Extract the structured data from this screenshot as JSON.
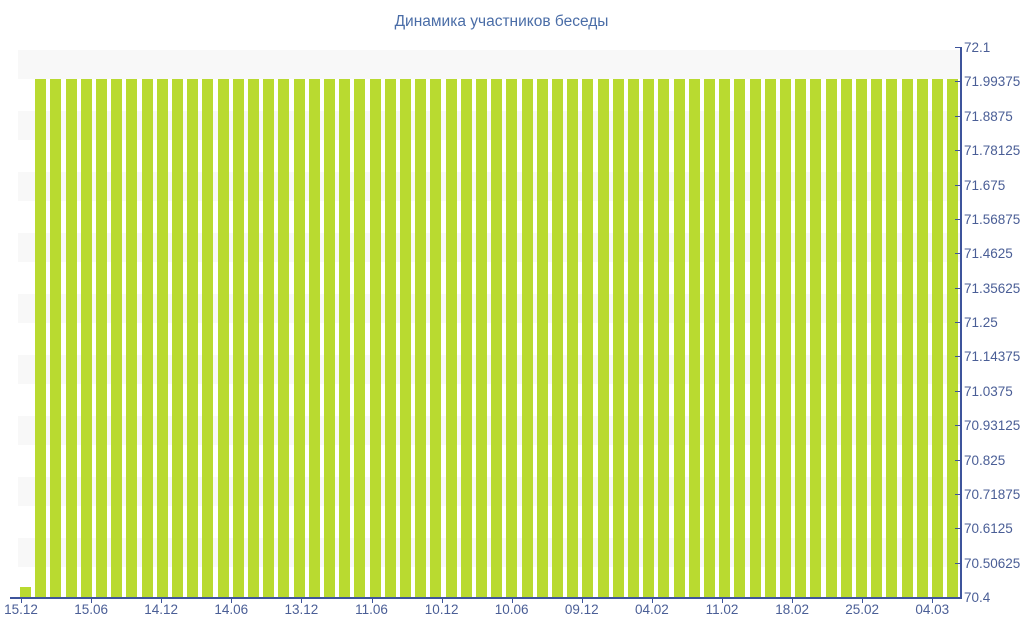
{
  "title": "Динамика участников беседы",
  "colors": {
    "bar": "#b9da30",
    "axis": "#3e549b",
    "label": "#4a5e96",
    "title": "#4a6da7",
    "band": "#f8f8f8",
    "background": "#ffffff"
  },
  "chart_data": {
    "type": "bar",
    "title": "Динамика участников беседы",
    "xlabel": "",
    "ylabel": "",
    "ylim": [
      70.4,
      72.1
    ],
    "y_axis_position": "right",
    "grid": "horizontal-alternating-bands",
    "legend": "none",
    "x_tick_labels": [
      "15.12",
      "15.06",
      "14.12",
      "14.06",
      "13.12",
      "11.06",
      "10.12",
      "10.06",
      "09.12",
      "04.02",
      "11.02",
      "18.02",
      "25.02",
      "04.03"
    ],
    "y_tick_labels": [
      "72.1",
      "71.99375",
      "71.8875",
      "71.78125",
      "71.675",
      "71.56875",
      "71.4625",
      "71.35625",
      "71.25",
      "71.14375",
      "71.0375",
      "70.93125",
      "70.825",
      "70.71875",
      "70.6125",
      "70.50625",
      "70.4"
    ],
    "y_tick_step": 0.10625,
    "bar_count": 62,
    "values": [
      70.43,
      72,
      72,
      72,
      72,
      72,
      72,
      72,
      72,
      72,
      72,
      72,
      72,
      72,
      72,
      72,
      72,
      72,
      72,
      72,
      72,
      72,
      72,
      72,
      72,
      72,
      72,
      72,
      72,
      72,
      72,
      72,
      72,
      72,
      72,
      72,
      72,
      72,
      72,
      72,
      72,
      72,
      72,
      72,
      72,
      72,
      72,
      72,
      72,
      72,
      72,
      72,
      72,
      72,
      72,
      72,
      72,
      72,
      72,
      72,
      72,
      72
    ]
  }
}
